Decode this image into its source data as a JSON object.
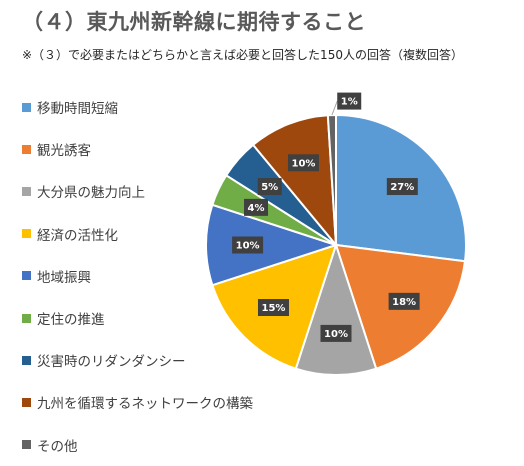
{
  "title": "（４）東九州新幹線に期待すること",
  "subtitle": "※（３）で必要またはどちらかと言えば必要と回答した150人の回答（複数回答）",
  "chart_data": {
    "type": "pie",
    "categories": [
      "移動時間短縮",
      "観光誘客",
      "大分県の魅力向上",
      "経済の活性化",
      "地域振興",
      "定住の推進",
      "災害時のリダンダンシー",
      "九州を循環するネットワークの構築",
      "その他"
    ],
    "values": [
      27,
      18,
      10,
      15,
      10,
      4,
      5,
      10,
      1
    ],
    "data_labels": [
      "27%",
      "18%",
      "10%",
      "15%",
      "10%",
      "4%",
      "5%",
      "10%",
      "1%"
    ],
    "colors": [
      "#5B9BD5",
      "#ED7D31",
      "#A5A5A5",
      "#FFC000",
      "#4472C4",
      "#70AD47",
      "#255E91",
      "#9E480E",
      "#636363"
    ],
    "legend_position": "left"
  }
}
